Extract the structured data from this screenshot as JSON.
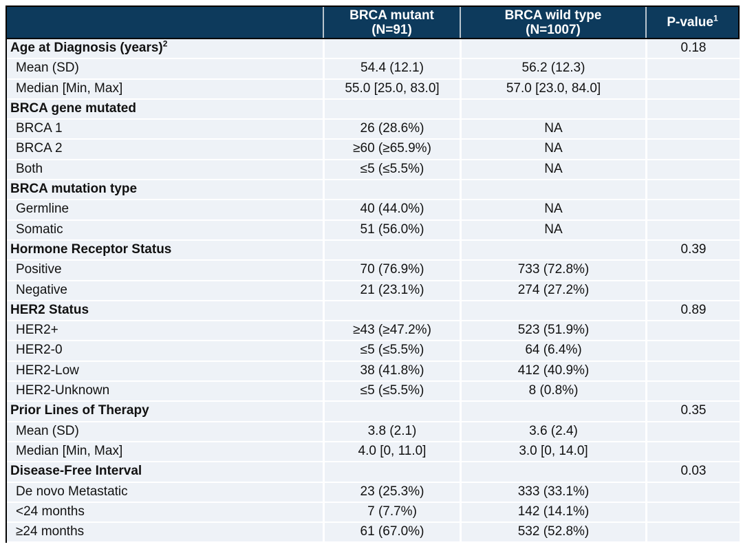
{
  "colors": {
    "header_background": "#0d3a5c",
    "header_text": "#ffffff",
    "body_cell_background": "#eef2f7",
    "grid_line": "#ffffff",
    "outer_border": "#000000",
    "body_text": "#111111"
  },
  "chart_data": {
    "type": "table",
    "columns": [
      {
        "key": "label",
        "header": ""
      },
      {
        "key": "brca_mutant",
        "header_line1": "BRCA mutant",
        "header_line2": "(N=91)"
      },
      {
        "key": "brca_wild_type",
        "header_line1": "BRCA wild type",
        "header_line2": "(N=1007)"
      },
      {
        "key": "p_value",
        "header": "P-value",
        "header_sup": "1"
      }
    ],
    "rows": [
      {
        "type": "section",
        "label": "Age at Diagnosis (years)",
        "sup": "2",
        "brca_mutant": "",
        "brca_wild_type": "",
        "p_value": "0.18"
      },
      {
        "type": "sub",
        "label": "Mean (SD)",
        "brca_mutant": "54.4 (12.1)",
        "brca_wild_type": "56.2 (12.3)",
        "p_value": ""
      },
      {
        "type": "sub",
        "label": "Median [Min, Max]",
        "brca_mutant": "55.0 [25.0, 83.0]",
        "brca_wild_type": "57.0 [23.0, 84.0]",
        "p_value": ""
      },
      {
        "type": "section",
        "label": "BRCA gene mutated",
        "brca_mutant": "",
        "brca_wild_type": "",
        "p_value": ""
      },
      {
        "type": "sub",
        "label": "BRCA 1",
        "brca_mutant": "26 (28.6%)",
        "brca_wild_type": "NA",
        "p_value": ""
      },
      {
        "type": "sub",
        "label": "BRCA 2",
        "brca_mutant": "≥60 (≥65.9%)",
        "brca_wild_type": "NA",
        "p_value": ""
      },
      {
        "type": "sub",
        "label": "Both",
        "brca_mutant": "≤5 (≤5.5%)",
        "brca_wild_type": "NA",
        "p_value": ""
      },
      {
        "type": "section",
        "label": "BRCA mutation type",
        "brca_mutant": "",
        "brca_wild_type": "",
        "p_value": ""
      },
      {
        "type": "sub",
        "label": "Germline",
        "brca_mutant": "40 (44.0%)",
        "brca_wild_type": "NA",
        "p_value": ""
      },
      {
        "type": "sub",
        "label": "Somatic",
        "brca_mutant": "51 (56.0%)",
        "brca_wild_type": "NA",
        "p_value": ""
      },
      {
        "type": "section",
        "label": "Hormone Receptor Status",
        "brca_mutant": "",
        "brca_wild_type": "",
        "p_value": "0.39"
      },
      {
        "type": "sub",
        "label": "Positive",
        "brca_mutant": "70 (76.9%)",
        "brca_wild_type": "733 (72.8%)",
        "p_value": ""
      },
      {
        "type": "sub",
        "label": "Negative",
        "brca_mutant": "21 (23.1%)",
        "brca_wild_type": "274 (27.2%)",
        "p_value": ""
      },
      {
        "type": "section",
        "label": "HER2 Status",
        "brca_mutant": "",
        "brca_wild_type": "",
        "p_value": "0.89"
      },
      {
        "type": "sub",
        "label": "HER2+",
        "brca_mutant": "≥43 (≥47.2%)",
        "brca_wild_type": "523 (51.9%)",
        "p_value": ""
      },
      {
        "type": "sub",
        "label": "HER2-0",
        "brca_mutant": "≤5 (≤5.5%)",
        "brca_wild_type": "64 (6.4%)",
        "p_value": ""
      },
      {
        "type": "sub",
        "label": "HER2-Low",
        "brca_mutant": "38 (41.8%)",
        "brca_wild_type": "412 (40.9%)",
        "p_value": ""
      },
      {
        "type": "sub",
        "label": "HER2-Unknown",
        "brca_mutant": "≤5 (≤5.5%)",
        "brca_wild_type": "8 (0.8%)",
        "p_value": ""
      },
      {
        "type": "section",
        "label": "Prior Lines of Therapy",
        "brca_mutant": "",
        "brca_wild_type": "",
        "p_value": "0.35"
      },
      {
        "type": "sub",
        "label": "Mean (SD)",
        "brca_mutant": "3.8 (2.1)",
        "brca_wild_type": "3.6 (2.4)",
        "p_value": ""
      },
      {
        "type": "sub",
        "label": "Median [Min, Max]",
        "brca_mutant": "4.0 [0, 11.0]",
        "brca_wild_type": "3.0 [0, 14.0]",
        "p_value": ""
      },
      {
        "type": "section",
        "label": "Disease-Free Interval",
        "brca_mutant": "",
        "brca_wild_type": "",
        "p_value": "0.03"
      },
      {
        "type": "sub",
        "label": "De novo Metastatic",
        "brca_mutant": "23 (25.3%)",
        "brca_wild_type": "333 (33.1%)",
        "p_value": ""
      },
      {
        "type": "sub",
        "label": "<24 months",
        "brca_mutant": "7 (7.7%)",
        "brca_wild_type": "142 (14.1%)",
        "p_value": ""
      },
      {
        "type": "sub",
        "label": "≥24 months",
        "brca_mutant": "61 (67.0%)",
        "brca_wild_type": "532 (52.8%)",
        "p_value": ""
      }
    ]
  }
}
